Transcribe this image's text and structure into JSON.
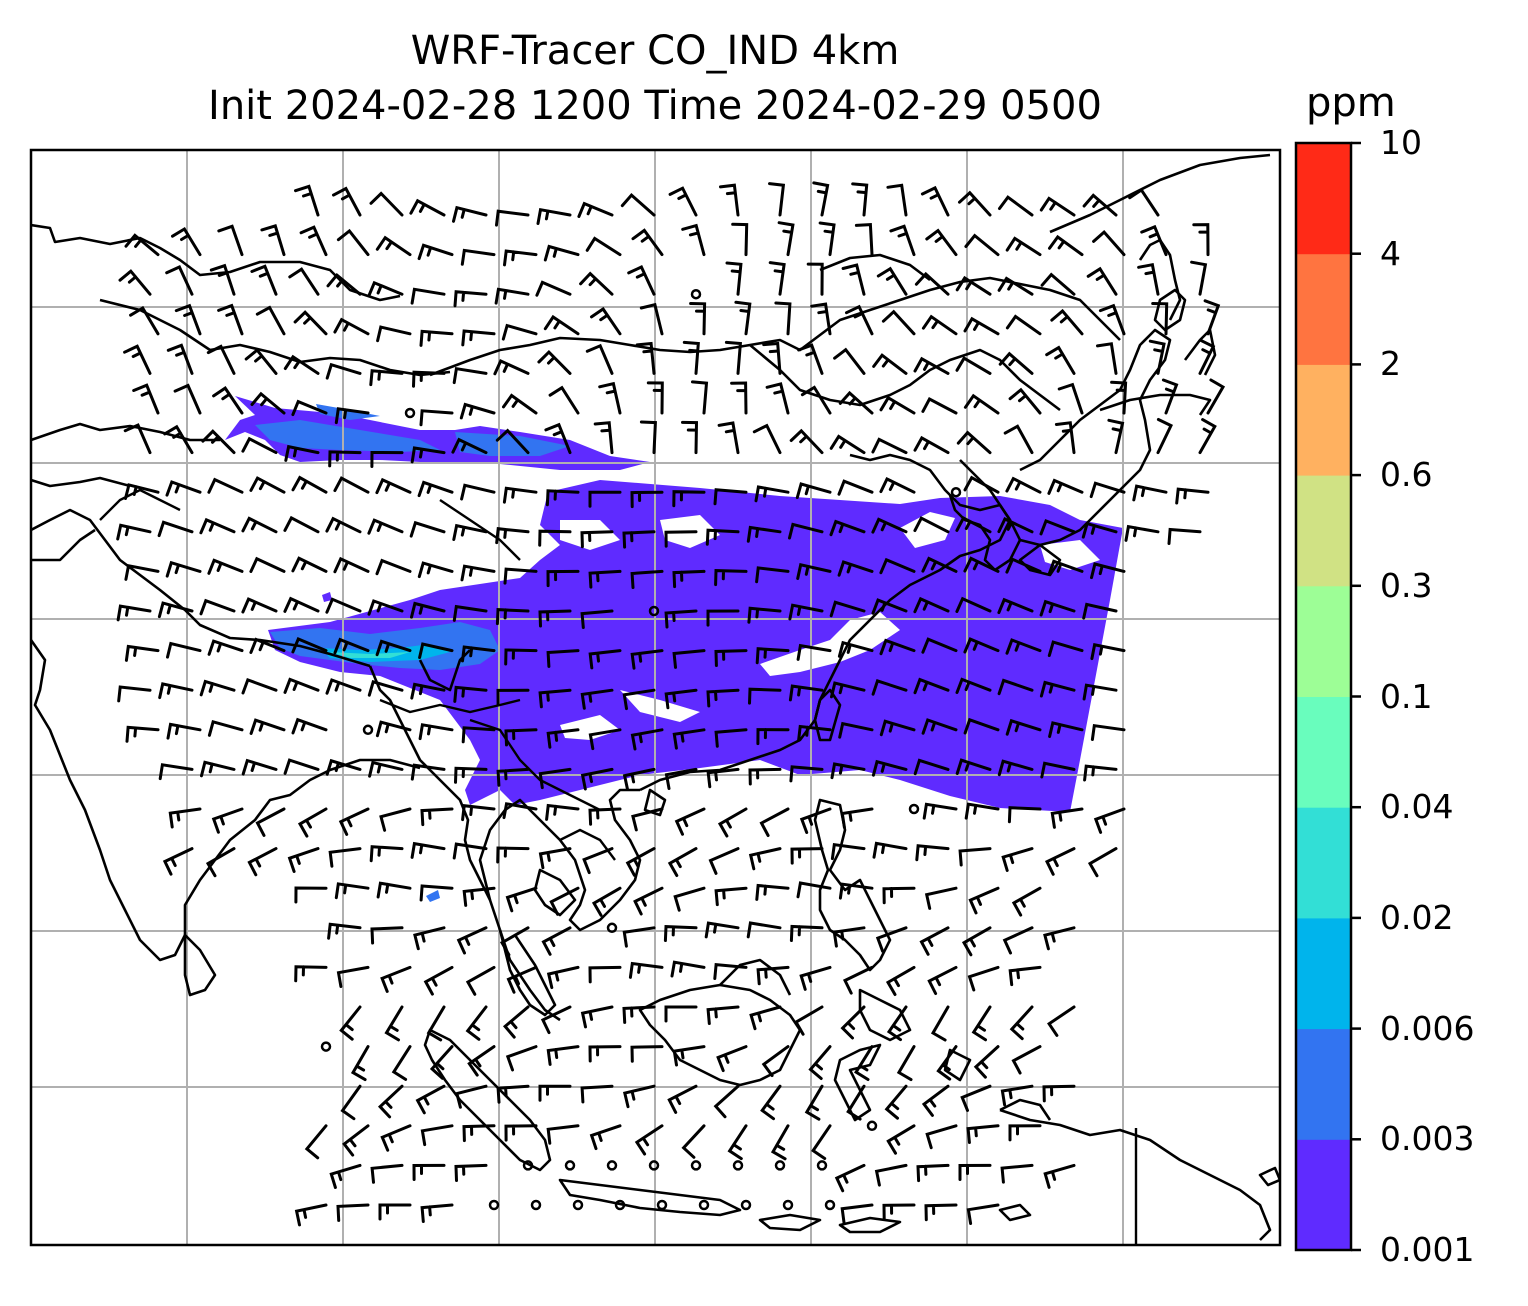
{
  "title": {
    "line1": "WRF-Tracer CO_IND 4km",
    "line2": "Init 2024-02-28 1200 Time 2024-02-29 0500"
  },
  "colorbar": {
    "unit": "ppm",
    "levels": [
      "0.001",
      "0.003",
      "0.006",
      "0.02",
      "0.04",
      "0.1",
      "0.3",
      "0.6",
      "2",
      "4",
      "10"
    ],
    "colors": [
      "#5f2bff",
      "#3274f1",
      "#00b4ec",
      "#32dfd6",
      "#69fdbd",
      "#9dfe96",
      "#d0e284",
      "#ffb160",
      "#ff7440",
      "#ff2a17"
    ]
  },
  "map": {
    "features": [
      "coastlines",
      "country-borders",
      "lat-lon-gridlines",
      "wind-barbs",
      "tracer-concentration-field"
    ],
    "wind_barb_color": "#000000",
    "gridline_color": "#b0b0b0"
  }
}
